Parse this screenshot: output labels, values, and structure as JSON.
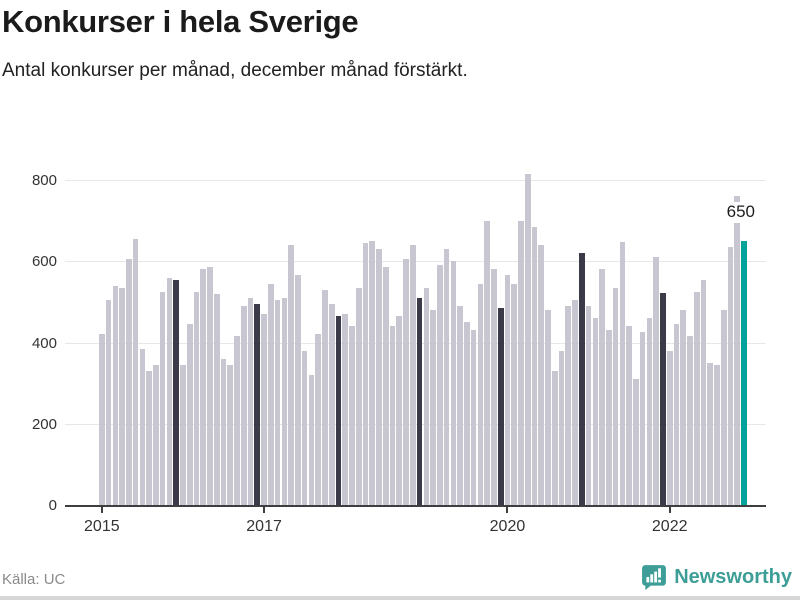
{
  "title": "Konkurser i hela Sverige",
  "subtitle": "Antal konkurser per månad, december månad förstärkt.",
  "source": "Källa: UC",
  "brand": {
    "name": "Newsworthy"
  },
  "annotation": {
    "last_value_label": "650"
  },
  "colors": {
    "bar": "#c8c7d1",
    "december_bar": "#3b3a48",
    "highlight_bar": "#00a29a",
    "brand_teal": "#3d9e97",
    "axis": "#3e3e3e",
    "gridline": "#e7e7e7",
    "tick_text": "#333333"
  },
  "chart_data": {
    "type": "bar",
    "title": "Konkurser i hela Sverige",
    "subtitle": "Antal konkurser per månad, december månad förstärkt.",
    "xlabel": "",
    "ylabel": "",
    "grid": true,
    "legend": "none",
    "ylim": [
      0,
      860
    ],
    "y_ticks": [
      0,
      200,
      400,
      600,
      800
    ],
    "x_ticks": [
      {
        "label": "2015",
        "month_index": 0
      },
      {
        "label": "2017",
        "month_index": 24
      },
      {
        "label": "2020",
        "month_index": 60
      },
      {
        "label": "2022",
        "month_index": 84
      }
    ],
    "start_year": 2015,
    "months_per_year": 12,
    "emphasized_month": "december",
    "highlight_index": 95,
    "highlight_value_label": "650",
    "values": [
      420,
      505,
      540,
      535,
      605,
      655,
      385,
      330,
      345,
      525,
      560,
      555,
      345,
      445,
      525,
      580,
      585,
      520,
      360,
      345,
      415,
      490,
      510,
      495,
      470,
      545,
      505,
      510,
      640,
      565,
      380,
      320,
      420,
      530,
      495,
      465,
      470,
      440,
      535,
      645,
      650,
      630,
      585,
      440,
      465,
      605,
      640,
      510,
      535,
      480,
      590,
      630,
      600,
      490,
      450,
      430,
      545,
      700,
      580,
      485,
      565,
      545,
      700,
      815,
      685,
      640,
      480,
      330,
      380,
      490,
      505,
      620,
      490,
      460,
      580,
      430,
      535,
      648,
      440,
      310,
      425,
      460,
      610,
      523,
      380,
      445,
      480,
      415,
      525,
      555,
      350,
      345,
      480,
      635,
      760,
      650
    ]
  }
}
